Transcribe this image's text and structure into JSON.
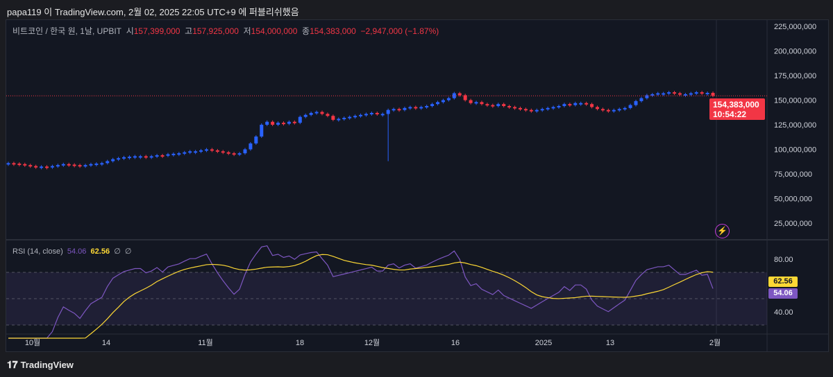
{
  "header": {
    "published": "papa119 이 TradingView.com, 2월 02, 2025 22:05 UTC+9 에 퍼블리쉬했음"
  },
  "legend": {
    "symbol": "비트코인 / 한국 원, 1날, UPBIT",
    "open_label": "시",
    "open": "157,399,000",
    "high_label": "고",
    "high": "157,925,000",
    "low_label": "저",
    "low": "154,000,000",
    "close_label": "종",
    "close": "154,383,000",
    "change": "−2,947,000 (−1.87%)"
  },
  "price_tag": {
    "price": "154,383,000",
    "countdown": "10:54:22"
  },
  "rsi": {
    "label": "RSI (14, close)",
    "value": "54.06",
    "ma": "62.56",
    "extra1": "∅",
    "extra2": "∅",
    "ticks": [
      "80.00",
      "40.00"
    ]
  },
  "colors": {
    "up": "#2962ff",
    "down": "#f23645",
    "rsi": "#7e57c2",
    "rsi_ma": "#fdd835"
  },
  "footer": {
    "brand": "TradingView"
  },
  "chart_data": {
    "type": "candlestick",
    "start_date": "2024-09-27",
    "unit": "KRW millions",
    "closes": [
      86,
      85.5,
      85,
      84,
      83,
      82,
      82.5,
      82,
      83,
      84,
      85,
      84.5,
      84,
      83,
      84,
      85,
      85.5,
      86,
      88,
      90,
      91,
      92,
      92.5,
      93,
      93,
      92.5,
      93,
      94,
      93.5,
      95,
      95.5,
      96,
      97,
      98,
      98,
      99,
      100,
      99,
      98,
      97,
      96,
      95,
      96,
      100,
      106,
      113,
      125,
      128,
      125,
      127,
      126,
      128,
      127,
      133,
      135,
      137,
      138,
      136,
      134,
      130,
      131,
      132,
      133,
      134,
      135,
      136,
      137,
      136,
      136,
      140,
      141,
      140,
      142,
      143,
      142,
      143,
      144,
      146,
      148,
      150,
      152,
      157,
      155,
      150,
      147,
      148,
      146,
      145,
      144,
      146,
      144,
      143,
      142,
      141,
      140,
      139,
      140,
      141,
      142,
      143,
      144,
      146,
      145,
      147,
      147,
      146,
      143,
      141,
      140,
      139,
      140,
      141,
      142,
      145,
      149,
      152,
      155,
      156,
      157,
      157,
      158,
      157,
      156,
      156,
      157,
      158,
      157,
      157.399,
      154.383
    ],
    "notable_low": {
      "date": "2024-12-05",
      "low": 88
    },
    "y_ticks": [
      "225,000,000",
      "200,000,000",
      "175,000,000",
      "150,000,000",
      "125,000,000",
      "100,000,000",
      "75,000,000",
      "50,000,000",
      "25,000,000"
    ],
    "x_ticks": [
      "10월",
      "14",
      "11월",
      "18",
      "12월",
      "16",
      "2025",
      "13",
      "2월"
    ]
  }
}
